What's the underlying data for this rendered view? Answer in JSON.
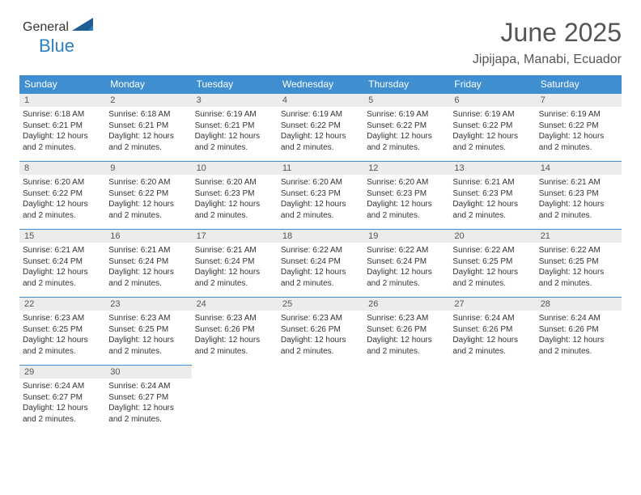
{
  "logo": {
    "text1": "General",
    "text2": "Blue"
  },
  "title": "June 2025",
  "location": "Jipijapa, Manabi, Ecuador",
  "colors": {
    "header_bg": "#3f8fd0",
    "header_text": "#ffffff",
    "daynum_bg": "#ececec",
    "rule": "#3f8fd0",
    "title_color": "#555555",
    "logo_gray": "#6d6d6d",
    "logo_blue": "#2d7fc4"
  },
  "weekdays": [
    "Sunday",
    "Monday",
    "Tuesday",
    "Wednesday",
    "Thursday",
    "Friday",
    "Saturday"
  ],
  "daylight_text": "Daylight: 12 hours and 2 minutes.",
  "days": [
    {
      "n": 1,
      "sunrise": "6:18 AM",
      "sunset": "6:21 PM"
    },
    {
      "n": 2,
      "sunrise": "6:18 AM",
      "sunset": "6:21 PM"
    },
    {
      "n": 3,
      "sunrise": "6:19 AM",
      "sunset": "6:21 PM"
    },
    {
      "n": 4,
      "sunrise": "6:19 AM",
      "sunset": "6:22 PM"
    },
    {
      "n": 5,
      "sunrise": "6:19 AM",
      "sunset": "6:22 PM"
    },
    {
      "n": 6,
      "sunrise": "6:19 AM",
      "sunset": "6:22 PM"
    },
    {
      "n": 7,
      "sunrise": "6:19 AM",
      "sunset": "6:22 PM"
    },
    {
      "n": 8,
      "sunrise": "6:20 AM",
      "sunset": "6:22 PM"
    },
    {
      "n": 9,
      "sunrise": "6:20 AM",
      "sunset": "6:22 PM"
    },
    {
      "n": 10,
      "sunrise": "6:20 AM",
      "sunset": "6:23 PM"
    },
    {
      "n": 11,
      "sunrise": "6:20 AM",
      "sunset": "6:23 PM"
    },
    {
      "n": 12,
      "sunrise": "6:20 AM",
      "sunset": "6:23 PM"
    },
    {
      "n": 13,
      "sunrise": "6:21 AM",
      "sunset": "6:23 PM"
    },
    {
      "n": 14,
      "sunrise": "6:21 AM",
      "sunset": "6:23 PM"
    },
    {
      "n": 15,
      "sunrise": "6:21 AM",
      "sunset": "6:24 PM"
    },
    {
      "n": 16,
      "sunrise": "6:21 AM",
      "sunset": "6:24 PM"
    },
    {
      "n": 17,
      "sunrise": "6:21 AM",
      "sunset": "6:24 PM"
    },
    {
      "n": 18,
      "sunrise": "6:22 AM",
      "sunset": "6:24 PM"
    },
    {
      "n": 19,
      "sunrise": "6:22 AM",
      "sunset": "6:24 PM"
    },
    {
      "n": 20,
      "sunrise": "6:22 AM",
      "sunset": "6:25 PM"
    },
    {
      "n": 21,
      "sunrise": "6:22 AM",
      "sunset": "6:25 PM"
    },
    {
      "n": 22,
      "sunrise": "6:23 AM",
      "sunset": "6:25 PM"
    },
    {
      "n": 23,
      "sunrise": "6:23 AM",
      "sunset": "6:25 PM"
    },
    {
      "n": 24,
      "sunrise": "6:23 AM",
      "sunset": "6:26 PM"
    },
    {
      "n": 25,
      "sunrise": "6:23 AM",
      "sunset": "6:26 PM"
    },
    {
      "n": 26,
      "sunrise": "6:23 AM",
      "sunset": "6:26 PM"
    },
    {
      "n": 27,
      "sunrise": "6:24 AM",
      "sunset": "6:26 PM"
    },
    {
      "n": 28,
      "sunrise": "6:24 AM",
      "sunset": "6:26 PM"
    },
    {
      "n": 29,
      "sunrise": "6:24 AM",
      "sunset": "6:27 PM"
    },
    {
      "n": 30,
      "sunrise": "6:24 AM",
      "sunset": "6:27 PM"
    }
  ],
  "start_weekday": 0,
  "labels": {
    "sunrise": "Sunrise:",
    "sunset": "Sunset:"
  }
}
